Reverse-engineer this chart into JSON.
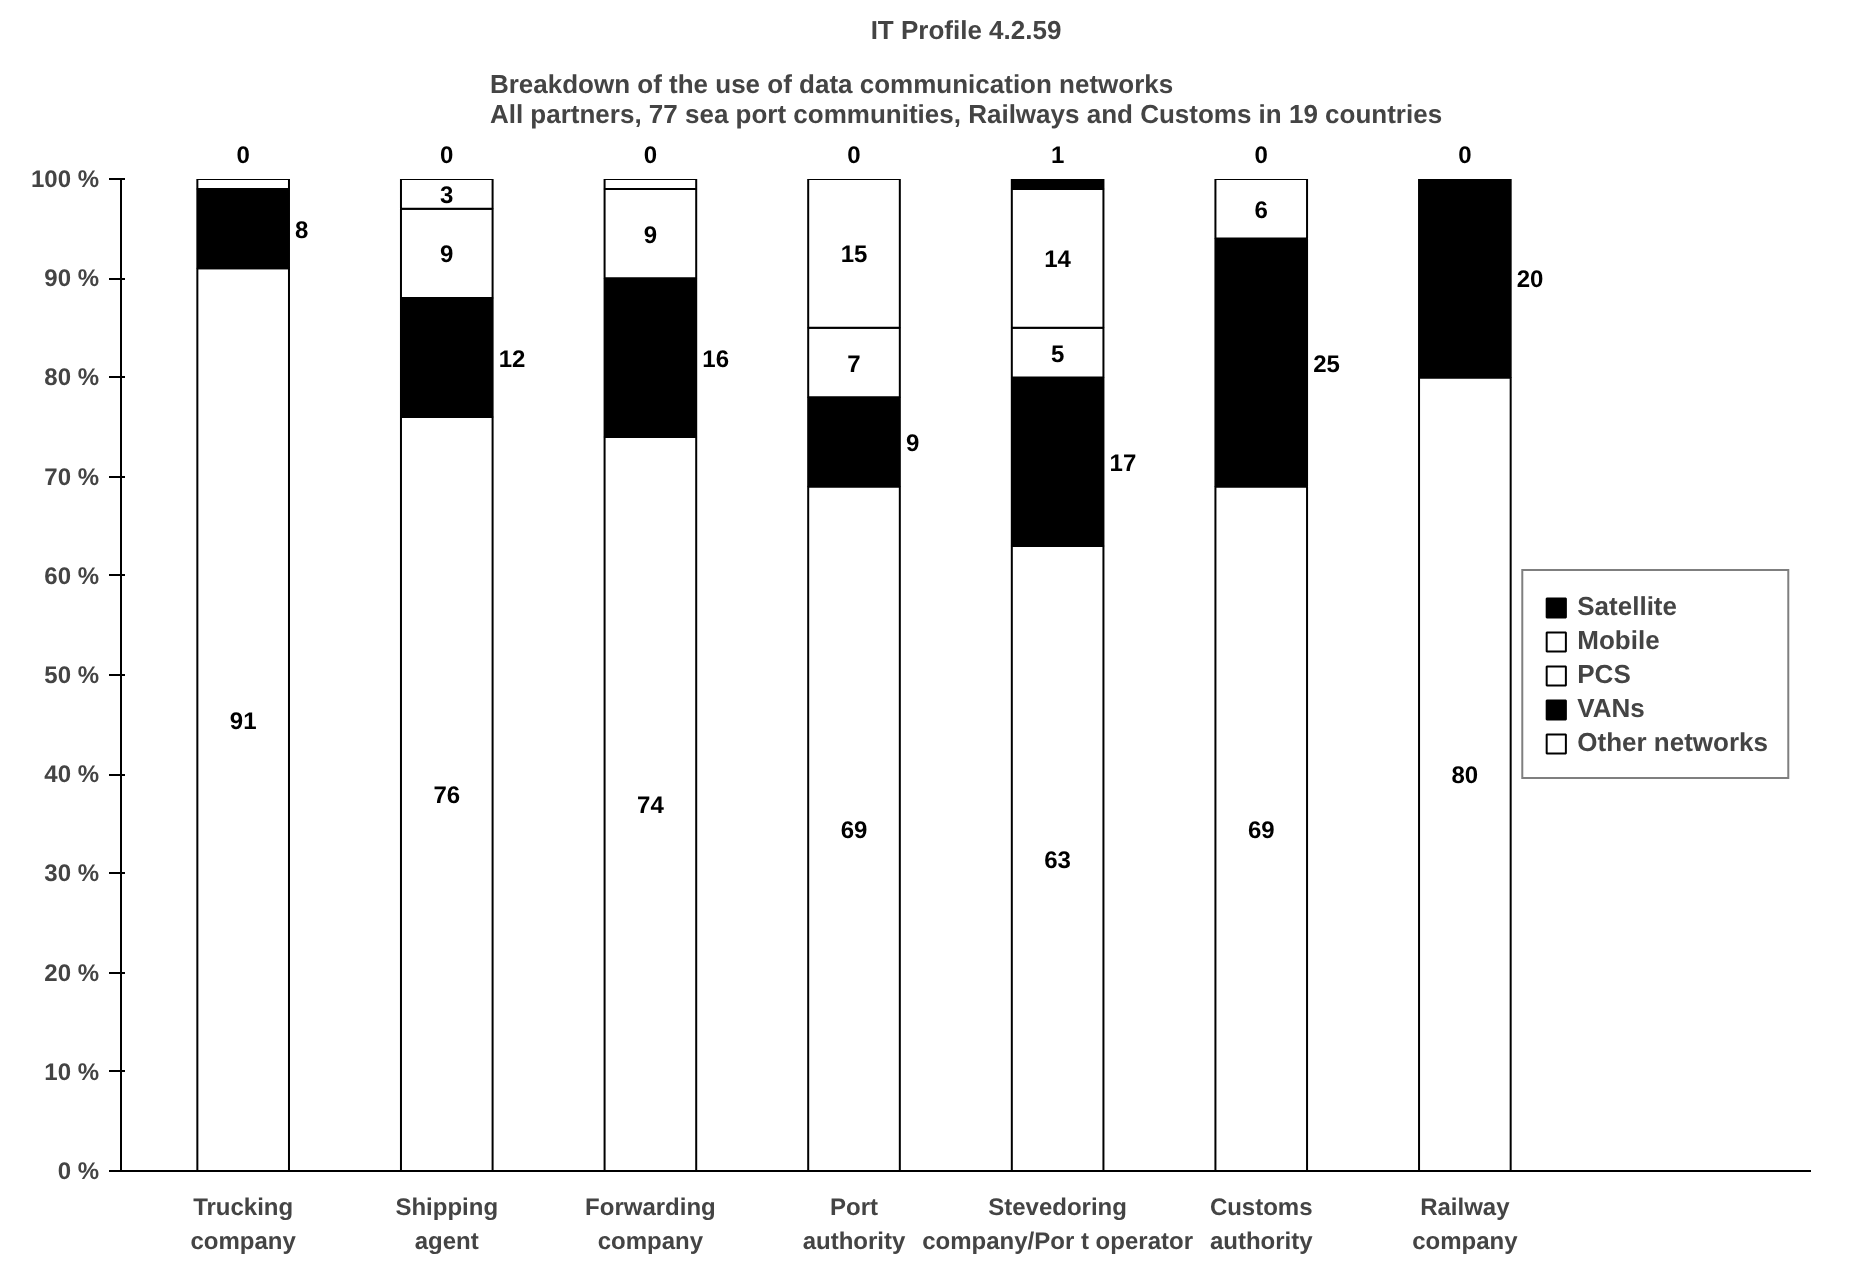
{
  "chart_data": {
    "type": "bar",
    "stacked": true,
    "title": "IT Profile 4.2.59",
    "subtitle": "Breakdown of the use of data communication networks\nAll partners, 77 sea port communities, Railways and Customs in 19 countries",
    "categories": [
      "Trucking company",
      "Shipping agent",
      "Forwarding company",
      "Port authority",
      "Stevedoring company/Por t operator",
      "Customs authority",
      "Railway company"
    ],
    "series": [
      {
        "name": "Other networks",
        "color": "#ffffff",
        "values": [
          91,
          76,
          74,
          69,
          63,
          69,
          80
        ],
        "value_labels": [
          "91",
          "76",
          "74",
          "69",
          "63",
          "69",
          "80"
        ]
      },
      {
        "name": "VANs",
        "color": "#000000",
        "values": [
          8,
          12,
          16,
          9,
          17,
          25,
          20
        ],
        "value_labels": [
          "8",
          "12",
          "16",
          "9",
          "17",
          "25",
          "20"
        ]
      },
      {
        "name": "PCS",
        "color": "#ffffff",
        "values": [
          0,
          9,
          9,
          7,
          5,
          6,
          0
        ],
        "value_labels": [
          null,
          "9",
          "9",
          "7",
          "5",
          "6",
          null
        ]
      },
      {
        "name": "Mobile",
        "color": "#ffffff",
        "values": [
          1,
          3,
          1,
          15,
          14,
          0,
          0
        ],
        "value_labels": [
          null,
          "3",
          null,
          "15",
          "14",
          null,
          null
        ]
      },
      {
        "name": "Satellite",
        "color": "#000000",
        "values": [
          0,
          0,
          0,
          0,
          1,
          0,
          0
        ],
        "value_labels": [
          "0",
          "0",
          "0",
          "0",
          "1",
          "0",
          "0"
        ]
      }
    ],
    "ylim": [
      0,
      100
    ],
    "yticks": [
      {
        "value": 0,
        "label": "0 %"
      },
      {
        "value": 10,
        "label": "10 %"
      },
      {
        "value": 20,
        "label": "20 %"
      },
      {
        "value": 30,
        "label": "30 %"
      },
      {
        "value": 40,
        "label": "40 %"
      },
      {
        "value": 50,
        "label": "50 %"
      },
      {
        "value": 60,
        "label": "60 %"
      },
      {
        "value": 70,
        "label": "70 %"
      },
      {
        "value": 80,
        "label": "80 %"
      },
      {
        "value": 90,
        "label": "90 %"
      },
      {
        "value": 100,
        "label": "100 %"
      }
    ],
    "grid": false,
    "legend": "right"
  }
}
